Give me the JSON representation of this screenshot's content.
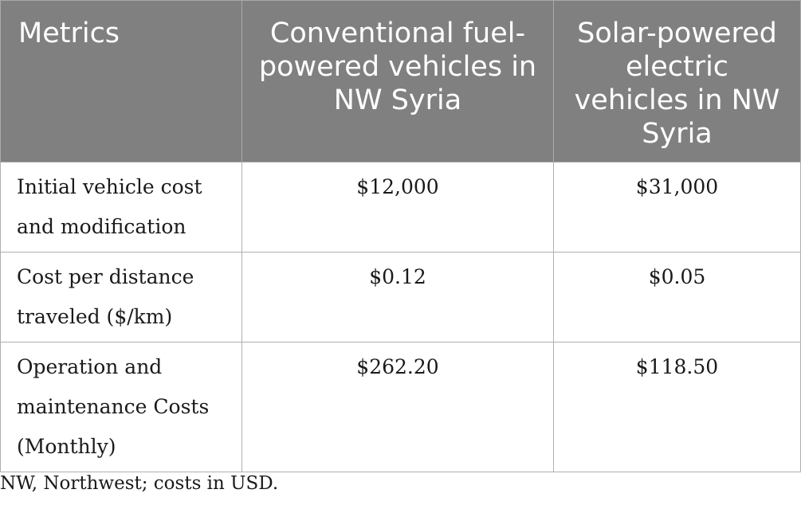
{
  "table": {
    "headers": [
      "Metrics",
      "Conventional fuel-powered vehicles in NW Syria",
      "Solar-powered electric vehicles in NW Syria"
    ],
    "rows": [
      {
        "metric": "Initial vehicle cost and modification",
        "conventional": "$12,000",
        "solar": "$31,000"
      },
      {
        "metric": "Cost per distance traveled ($/km)",
        "conventional": "$0.12",
        "solar": "$0.05"
      },
      {
        "metric": "Operation and maintenance Costs (Monthly)",
        "conventional": "$262.20",
        "solar": "$118.50"
      }
    ]
  },
  "footnote": "NW, Northwest; costs in USD.",
  "colors": {
    "header_bg": "#808080",
    "header_text": "#ffffff",
    "border": "#b0b0b0"
  }
}
